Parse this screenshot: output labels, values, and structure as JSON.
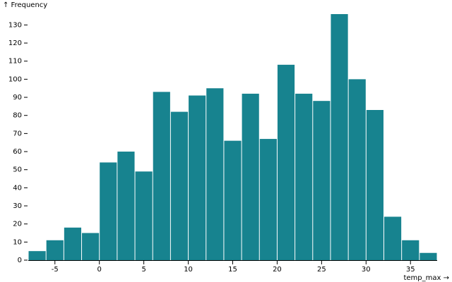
{
  "chart_data": {
    "type": "histogram",
    "y_label": "↑ Frequency",
    "x_label": "temp_max →",
    "bins": [
      -8,
      -6,
      -4,
      -2,
      0,
      2,
      4,
      6,
      8,
      10,
      12,
      14,
      16,
      18,
      20,
      22,
      24,
      26,
      28,
      30,
      32,
      34,
      36,
      38
    ],
    "values": [
      5,
      11,
      18,
      15,
      54,
      60,
      49,
      93,
      82,
      91,
      95,
      66,
      92,
      67,
      108,
      92,
      88,
      136,
      100,
      83,
      24,
      11,
      4
    ],
    "color": "#17838f",
    "xlim": [
      -8,
      38
    ],
    "xticks": [
      -5,
      0,
      5,
      10,
      15,
      20,
      25,
      30,
      35
    ],
    "ylim": [
      0,
      136
    ],
    "yticks": [
      0,
      10,
      20,
      30,
      40,
      50,
      60,
      70,
      80,
      90,
      100,
      110,
      120,
      130
    ]
  }
}
